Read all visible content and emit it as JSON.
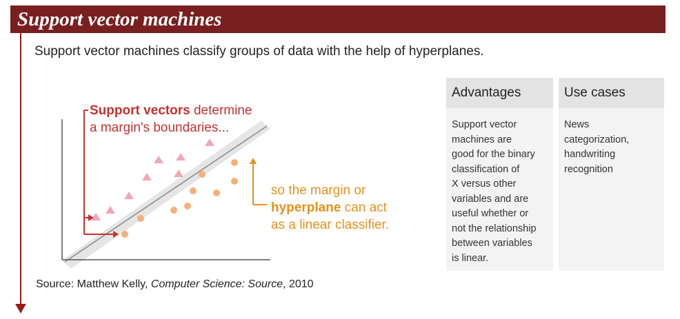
{
  "header": {
    "title": "Support vector machines"
  },
  "intro": "Support vector machines classify groups of data with the help of hyperplanes.",
  "annotation_support": {
    "bold": "Support vectors",
    "rest": " determine",
    "line2": "a margin's boundaries..."
  },
  "annotation_hyperplane": {
    "line1": "so the margin or",
    "bold": "hyperplane",
    "rest": " can act",
    "line3": "as a linear classifier."
  },
  "source": {
    "prefix": "Source: Matthew Kelly, ",
    "title": "Computer Science: Source",
    "suffix": ", 2010"
  },
  "advantages": {
    "heading": "Advantages",
    "lines": [
      "Support vector",
      "machines are",
      "good for the binary",
      "classification of",
      "X versus other",
      "variables and are",
      "useful whether or",
      "not the relationship",
      "between variables",
      "is linear."
    ]
  },
  "use_cases": {
    "heading": "Use cases",
    "lines": [
      "News",
      "categorization,",
      "handwriting",
      "recognition"
    ]
  },
  "colors": {
    "header_bg": "#7a1f1f",
    "red": "#c8302f",
    "orange": "#e8901c",
    "pink": "#f2a7b6",
    "orange_dot": "#f6b07a"
  }
}
